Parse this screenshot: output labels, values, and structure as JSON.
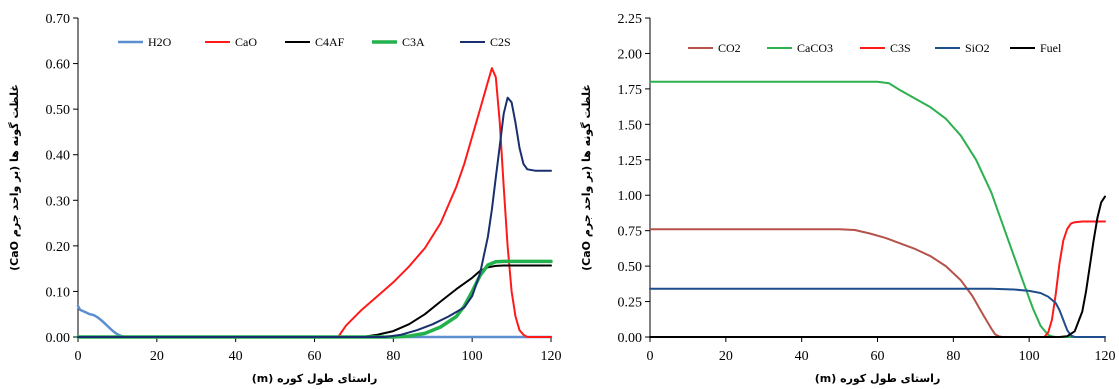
{
  "chart_data": [
    {
      "type": "line",
      "title": "",
      "xlabel": "راستای طول کوره (m)",
      "ylabel": "غلظت گونه ها (بر واحد جرم CaO)",
      "xlim": [
        0,
        120
      ],
      "ylim": [
        0,
        0.7
      ],
      "xticks": [
        0,
        20,
        40,
        60,
        80,
        100,
        120
      ],
      "xtick_labels": [
        "0",
        "20",
        "40",
        "60",
        "80",
        "100",
        "120"
      ],
      "yticks": [
        0,
        0.1,
        0.2,
        0.3,
        0.4,
        0.5,
        0.6,
        0.7
      ],
      "ytick_labels": [
        "0.00",
        "0.10",
        "0.20",
        "0.30",
        "0.40",
        "0.50",
        "0.60",
        "0.70"
      ],
      "grid": false,
      "legend_position": "top",
      "series": [
        {
          "name": "H2O",
          "color": "#5b8fd0",
          "width": 2.5,
          "x": [
            0,
            0.5,
            1,
            2,
            3,
            4,
            5,
            6,
            7,
            8,
            9,
            10,
            11,
            12,
            120
          ],
          "y": [
            0.068,
            0.06,
            0.058,
            0.054,
            0.05,
            0.048,
            0.043,
            0.036,
            0.028,
            0.02,
            0.012,
            0.006,
            0.002,
            0,
            0
          ]
        },
        {
          "name": "CaO",
          "color": "#ff1a1a",
          "width": 2,
          "x": [
            0,
            66,
            68,
            72,
            76,
            80,
            84,
            88,
            92,
            96,
            98,
            100,
            102,
            104,
            105,
            106,
            107,
            108,
            109,
            110,
            111,
            112,
            113,
            114,
            116,
            120
          ],
          "y": [
            0,
            0,
            0.025,
            0.06,
            0.09,
            0.12,
            0.155,
            0.195,
            0.25,
            0.33,
            0.38,
            0.44,
            0.5,
            0.56,
            0.59,
            0.57,
            0.47,
            0.33,
            0.2,
            0.1,
            0.045,
            0.015,
            0.005,
            0,
            0,
            0
          ]
        },
        {
          "name": "C4AF",
          "color": "#000000",
          "width": 2,
          "x": [
            0,
            72,
            76,
            80,
            84,
            88,
            92,
            96,
            100,
            102,
            104,
            106,
            108,
            120
          ],
          "y": [
            0,
            0,
            0.005,
            0.013,
            0.028,
            0.05,
            0.078,
            0.105,
            0.13,
            0.145,
            0.153,
            0.156,
            0.157,
            0.157
          ]
        },
        {
          "name": "C3A",
          "color": "#22b14c",
          "width": 3.5,
          "x": [
            0,
            80,
            84,
            88,
            92,
            96,
            98,
            100,
            102,
            104,
            106,
            108,
            120
          ],
          "y": [
            0,
            0,
            0.002,
            0.008,
            0.022,
            0.045,
            0.068,
            0.1,
            0.135,
            0.158,
            0.165,
            0.166,
            0.166
          ]
        },
        {
          "name": "C2S",
          "color": "#1a2f6e",
          "width": 2,
          "x": [
            0,
            78,
            82,
            86,
            90,
            94,
            98,
            100,
            102,
            104,
            105,
            106,
            107,
            108,
            109,
            110,
            111,
            112,
            113,
            114,
            116,
            118,
            120
          ],
          "y": [
            0,
            0,
            0.005,
            0.015,
            0.028,
            0.045,
            0.065,
            0.09,
            0.14,
            0.22,
            0.28,
            0.35,
            0.42,
            0.49,
            0.525,
            0.515,
            0.47,
            0.415,
            0.38,
            0.368,
            0.365,
            0.365,
            0.365
          ]
        }
      ]
    },
    {
      "type": "line",
      "title": "",
      "xlabel": "راستای طول کوره (m)",
      "ylabel": "غلظت گونه ها (بر واحد جرم CaO)",
      "xlim": [
        0,
        120
      ],
      "ylim": [
        0,
        2.25
      ],
      "xticks": [
        0,
        20,
        40,
        60,
        80,
        100,
        120
      ],
      "xtick_labels": [
        "0",
        "20",
        "40",
        "60",
        "80",
        "100",
        "120"
      ],
      "yticks": [
        0,
        0.25,
        0.5,
        0.75,
        1.0,
        1.25,
        1.5,
        1.75,
        2.0,
        2.25
      ],
      "ytick_labels": [
        "0.00",
        "0.25",
        "0.50",
        "0.75",
        "1.00",
        "1.25",
        "1.50",
        "1.75",
        "2.00",
        "2.25"
      ],
      "grid": false,
      "legend_position": "top",
      "series": [
        {
          "name": "CO2",
          "color": "#b5524a",
          "width": 2,
          "x": [
            0,
            50,
            54,
            58,
            62,
            66,
            70,
            74,
            78,
            82,
            85,
            88,
            90,
            91,
            92,
            93,
            120
          ],
          "y": [
            0.76,
            0.76,
            0.755,
            0.73,
            0.7,
            0.66,
            0.62,
            0.57,
            0.5,
            0.4,
            0.29,
            0.15,
            0.06,
            0.02,
            0.005,
            0,
            0
          ]
        },
        {
          "name": "CaCO3",
          "color": "#2db04f",
          "width": 2,
          "x": [
            0,
            60,
            63,
            66,
            70,
            74,
            78,
            82,
            86,
            90,
            94,
            98,
            101,
            103,
            105,
            106,
            107,
            108,
            120
          ],
          "y": [
            1.8,
            1.8,
            1.79,
            1.74,
            1.68,
            1.62,
            1.54,
            1.42,
            1.25,
            1.02,
            0.72,
            0.42,
            0.2,
            0.08,
            0.015,
            0.005,
            0,
            0,
            0
          ]
        },
        {
          "name": "C3S",
          "color": "#ff1a1a",
          "width": 2,
          "x": [
            0,
            104,
            105,
            106,
            107,
            108,
            109,
            110,
            111,
            112,
            114,
            116,
            120
          ],
          "y": [
            0,
            0,
            0.03,
            0.12,
            0.3,
            0.52,
            0.68,
            0.76,
            0.8,
            0.81,
            0.815,
            0.815,
            0.815
          ]
        },
        {
          "name": "SiO2",
          "color": "#1f4e8c",
          "width": 2,
          "x": [
            0,
            90,
            96,
            100,
            103,
            105,
            107,
            108,
            109,
            110,
            111,
            112,
            114,
            120
          ],
          "y": [
            0.34,
            0.34,
            0.335,
            0.325,
            0.31,
            0.285,
            0.24,
            0.19,
            0.12,
            0.05,
            0.01,
            0,
            0,
            0
          ]
        },
        {
          "name": "Fuel",
          "color": "#000000",
          "width": 2,
          "x": [
            0,
            108,
            110,
            112,
            114,
            115,
            116,
            117,
            118,
            119,
            120
          ],
          "y": [
            0,
            0,
            0.005,
            0.04,
            0.18,
            0.32,
            0.5,
            0.68,
            0.84,
            0.95,
            0.99
          ]
        }
      ]
    }
  ]
}
